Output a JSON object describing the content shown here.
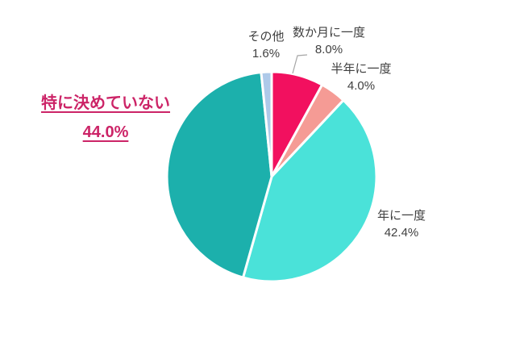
{
  "chart_data": {
    "type": "pie",
    "categories": [
      "数か月に一度",
      "半年に一度",
      "年に一度",
      "特に決めていない",
      "その他"
    ],
    "values": [
      8.0,
      4.0,
      42.4,
      44.0,
      1.6
    ],
    "value_labels": [
      "8.0%",
      "4.0%",
      "42.4%",
      "44.0%",
      "1.6%"
    ],
    "colors": [
      "#F2105F",
      "#F59B95",
      "#4AE2D9",
      "#1CB0AC",
      "#AEC9E9"
    ],
    "start_angle_deg": 0,
    "direction": "clockwise",
    "title": "",
    "legend": "none",
    "highlighted_category": "特に決めていない"
  },
  "ui_colors": {
    "label_text": "#404040",
    "highlight_text": "#CC2467",
    "leader_line": "#A6A6A6",
    "slice_border": "#FFFFFF",
    "background": "#FFFFFF"
  }
}
